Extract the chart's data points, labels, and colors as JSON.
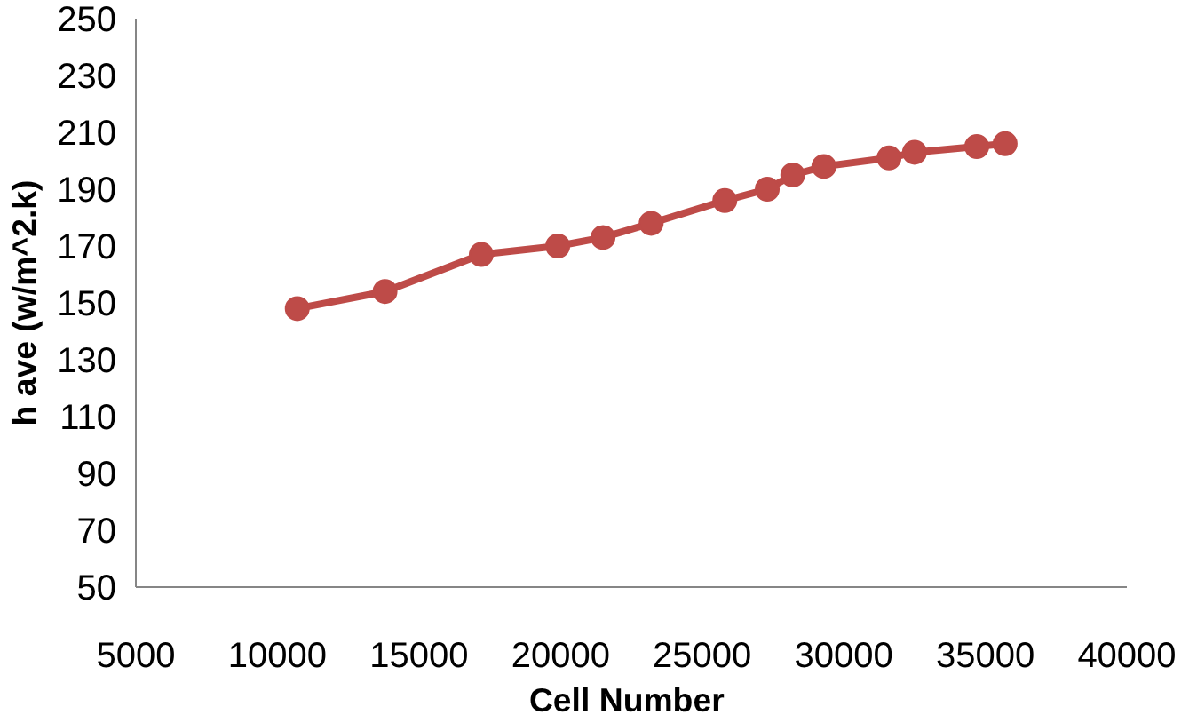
{
  "chart_data": {
    "type": "line",
    "xlabel": "Cell  Number",
    "ylabel": "h ave (w/m^2.k)",
    "x": [
      10700,
      13800,
      17200,
      19900,
      21500,
      23200,
      25800,
      27300,
      28200,
      29300,
      31600,
      32500,
      34700,
      35700
    ],
    "series": [
      {
        "color": "#be4b48",
        "values": [
          148,
          154,
          167,
          170,
          173,
          178,
          186,
          190,
          195,
          198,
          201,
          203,
          205,
          206
        ]
      }
    ],
    "xlim": [
      5000,
      40000
    ],
    "xticks": [
      5000,
      10000,
      15000,
      20000,
      25000,
      30000,
      35000,
      40000
    ],
    "ylim": [
      50,
      250
    ],
    "yticks": [
      50,
      70,
      90,
      110,
      130,
      150,
      170,
      190,
      210,
      230,
      250
    ],
    "grid": false,
    "marker": "circle",
    "line_style": "solid"
  }
}
